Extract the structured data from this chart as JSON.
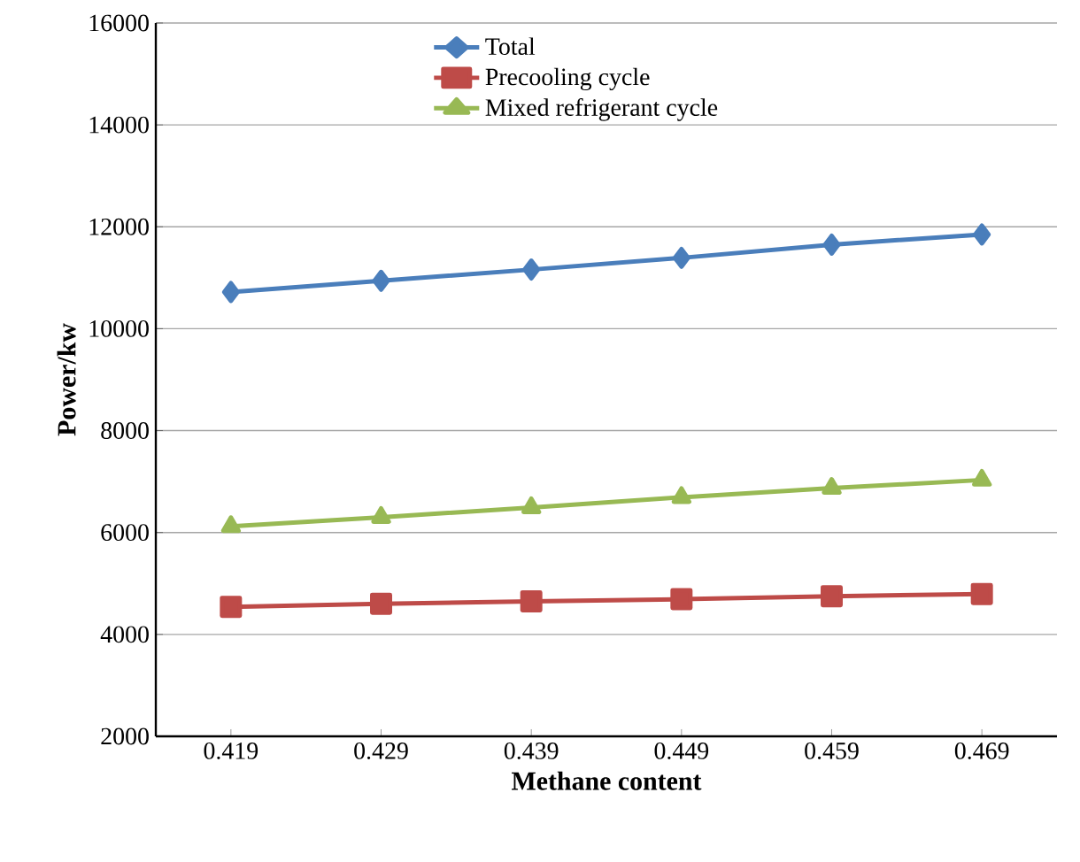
{
  "chart_data": {
    "type": "line",
    "xlabel": "Methane content",
    "ylabel": "Power/kw",
    "categories": [
      "0.419",
      "0.429",
      "0.439",
      "0.449",
      "0.459",
      "0.469"
    ],
    "series": [
      {
        "name": "Total",
        "color": "#4a7ebb",
        "marker": "diamond",
        "values": [
          10720,
          10940,
          11160,
          11390,
          11650,
          11850
        ]
      },
      {
        "name": "Precooling cycle",
        "color": "#be4b48",
        "marker": "square",
        "values": [
          4540,
          4600,
          4650,
          4690,
          4750,
          4790
        ]
      },
      {
        "name": "Mixed refrigerant cycle",
        "color": "#98b954",
        "marker": "triangle",
        "values": [
          6120,
          6300,
          6490,
          6690,
          6870,
          7030
        ]
      }
    ],
    "ylim": [
      2000,
      16000
    ],
    "yticks": [
      2000,
      4000,
      6000,
      8000,
      10000,
      12000,
      14000,
      16000
    ],
    "grid": "y",
    "legend": "top",
    "line_style": "solid"
  }
}
